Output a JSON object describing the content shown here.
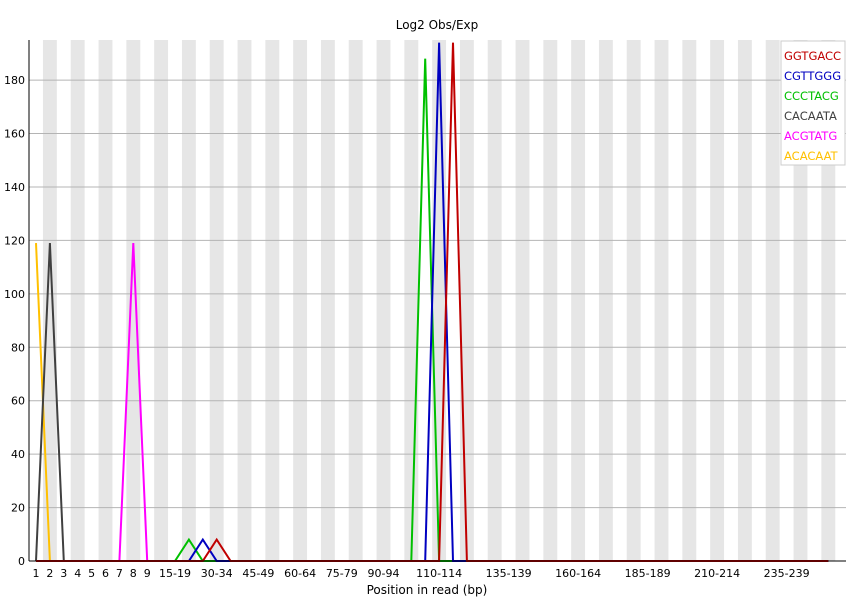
{
  "chart_data": {
    "type": "line",
    "title": "Log2 Obs/Exp",
    "xlabel": "Position in read (bp)",
    "ylabel": "",
    "ylim": [
      0,
      195
    ],
    "yticks": [
      0,
      20,
      40,
      60,
      80,
      100,
      120,
      140,
      160,
      180
    ],
    "categories": [
      "1",
      "2",
      "3",
      "4",
      "5",
      "6",
      "7",
      "8",
      "9",
      "10-14",
      "15-19",
      "20-24",
      "25-29",
      "30-34",
      "35-39",
      "40-44",
      "45-49",
      "50-54",
      "55-59",
      "60-64",
      "65-69",
      "70-74",
      "75-79",
      "80-84",
      "85-89",
      "90-94",
      "95-99",
      "100-104",
      "105-109",
      "110-114",
      "115-119",
      "120-124",
      "125-129",
      "130-134",
      "135-139",
      "140-144",
      "145-149",
      "150-154",
      "155-159",
      "160-164",
      "165-169",
      "170-174",
      "175-179",
      "180-184",
      "185-189",
      "190-194",
      "195-199",
      "200-204",
      "205-209",
      "210-214",
      "215-219",
      "220-224",
      "225-229",
      "230-234",
      "235-239",
      "240-244",
      "245-249",
      "250-251"
    ],
    "x_tick_labels": [
      "1",
      "2",
      "3",
      "4",
      "5",
      "6",
      "7",
      "8",
      "9",
      "15-19",
      "30-34",
      "45-49",
      "60-64",
      "75-79",
      "90-94",
      "110-114",
      "135-139",
      "160-164",
      "185-189",
      "210-214",
      "235-239"
    ],
    "grid": "horizontal lines with alternating grey vertical bands",
    "legend_position": "top-right",
    "series": [
      {
        "name": "GGTGACC",
        "color": "#c00000",
        "points": [
          {
            "i": 30,
            "y": 194
          }
        ]
      },
      {
        "name": "CGTTGGG",
        "color": "#0000c0",
        "points": [
          {
            "i": 12,
            "y": 8
          },
          {
            "i": 29,
            "y": 194
          }
        ]
      },
      {
        "name": "CCCTACG",
        "color": "#00c000",
        "points": [
          {
            "i": 11,
            "y": 8
          },
          {
            "i": 28,
            "y": 188
          }
        ]
      },
      {
        "name": "CACAATA",
        "color": "#404040",
        "points": [
          {
            "i": 1,
            "y": 119
          }
        ]
      },
      {
        "name": "ACGTATG",
        "color": "#ff00ff",
        "points": [
          {
            "i": 7,
            "y": 119
          }
        ]
      },
      {
        "name": "ACACAAT",
        "color": "#ffc000",
        "points": [
          {
            "i": 0,
            "y": 119
          }
        ]
      }
    ],
    "extra_peaks": [
      {
        "series": "GGTGACC",
        "i": 13,
        "y": 8
      }
    ]
  }
}
